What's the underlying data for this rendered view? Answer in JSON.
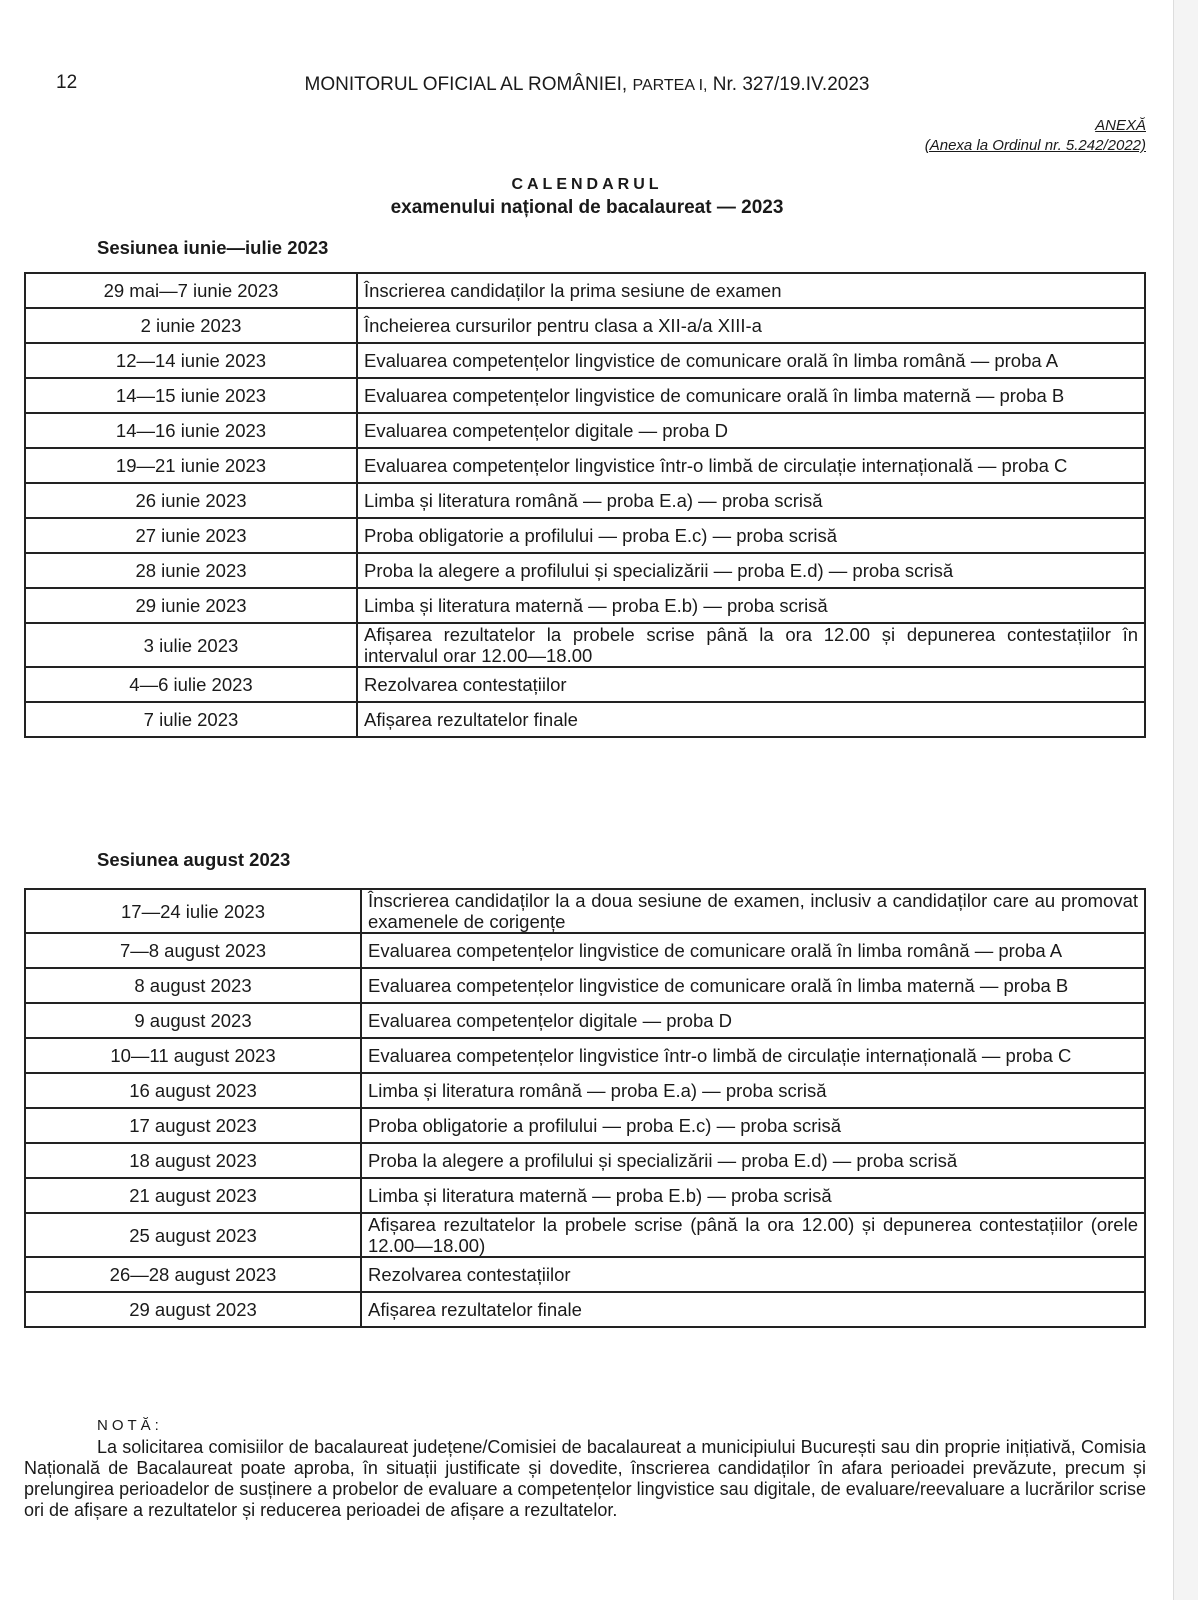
{
  "header": {
    "page_number": "12",
    "publication_main": "MONITORUL OFICIAL AL ROMÂNIEI,",
    "publication_part": "PARTEA I,",
    "publication_issue": "Nr. 327/19.IV.2023"
  },
  "annex": {
    "label": "ANEXĂ",
    "reference": "(Anexa la Ordinul nr. 5.242/2022)"
  },
  "title": {
    "line1": "CALENDARUL",
    "line2": "examenului național de bacalaureat — 2023"
  },
  "sessions": [
    {
      "heading": "Sesiunea iunie—iulie 2023",
      "rows": [
        {
          "date": "29 mai—7 iunie 2023",
          "event": "Înscrierea candidaților la prima sesiune de examen"
        },
        {
          "date": "2 iunie 2023",
          "event": "Încheierea cursurilor pentru clasa a XII-a/a XIII-a"
        },
        {
          "date": "12—14 iunie 2023",
          "event": "Evaluarea competențelor lingvistice de comunicare orală în limba română — proba A"
        },
        {
          "date": "14—15 iunie 2023",
          "event": "Evaluarea competențelor lingvistice de comunicare orală în limba maternă — proba B"
        },
        {
          "date": "14—16 iunie 2023",
          "event": "Evaluarea competențelor digitale — proba D"
        },
        {
          "date": "19—21 iunie 2023",
          "event": "Evaluarea competențelor lingvistice într-o limbă de circulație internațională — proba C"
        },
        {
          "date": "26 iunie 2023",
          "event": "Limba și literatura română — proba E.a) — proba scrisă"
        },
        {
          "date": "27 iunie 2023",
          "event": "Proba obligatorie a profilului — proba E.c) — proba scrisă"
        },
        {
          "date": "28 iunie 2023",
          "event": "Proba la alegere a profilului și specializării — proba E.d) — proba scrisă"
        },
        {
          "date": "29 iunie 2023",
          "event": "Limba și literatura maternă — proba E.b) — proba scrisă"
        },
        {
          "date": "3 iulie 2023",
          "event": "Afișarea rezultatelor la probele scrise până la ora 12.00 și depunerea contestațiilor în intervalul orar 12.00—18.00"
        },
        {
          "date": "4—6 iulie 2023",
          "event": "Rezolvarea contestațiilor"
        },
        {
          "date": "7 iulie 2023",
          "event": "Afișarea rezultatelor finale"
        }
      ]
    },
    {
      "heading": "Sesiunea august 2023",
      "rows": [
        {
          "date": "17—24 iulie 2023",
          "event": "Înscrierea candidaților la a doua sesiune de examen, inclusiv a candidaților care au promovat examenele de corigențe"
        },
        {
          "date": "7—8 august 2023",
          "event": "Evaluarea competențelor lingvistice de comunicare orală în limba română — proba A"
        },
        {
          "date": "8 august 2023",
          "event": "Evaluarea competențelor lingvistice de comunicare orală în limba maternă — proba B"
        },
        {
          "date": "9 august 2023",
          "event": "Evaluarea competențelor digitale — proba D"
        },
        {
          "date": "10—11 august 2023",
          "event": "Evaluarea competențelor lingvistice într-o limbă de circulație internațională — proba C"
        },
        {
          "date": "16 august 2023",
          "event": "Limba și literatura română — proba E.a) — proba scrisă"
        },
        {
          "date": "17 august 2023",
          "event": "Proba obligatorie a profilului — proba E.c) — proba scrisă"
        },
        {
          "date": "18 august 2023",
          "event": "Proba la alegere a profilului și specializării — proba E.d) — proba scrisă"
        },
        {
          "date": "21 august 2023",
          "event": "Limba și literatura maternă — proba E.b) — proba scrisă"
        },
        {
          "date": "25 august 2023",
          "event": "Afișarea rezultatelor la probele scrise (până la ora 12.00) și depunerea contestațiilor (orele 12.00—18.00)"
        },
        {
          "date": "26—28 august 2023",
          "event": "Rezolvarea contestațiilor"
        },
        {
          "date": "29 august 2023",
          "event": "Afișarea rezultatelor finale"
        }
      ]
    }
  ],
  "note": {
    "heading": "NOTĂ:",
    "text": "La solicitarea comisiilor de bacalaureat județene/Comisiei de bacalaureat a municipiului București sau din proprie inițiativă, Comisia Națională de Bacalaureat poate aproba, în situații justificate și dovedite, înscrierea candidaților în afara perioadei prevăzute, precum și prelungirea perioadelor de susținere a probelor de evaluare a competențelor lingvistice sau digitale, de evaluare/reevaluare a lucrărilor scrise ori de afișare a rezultatelor și reducerea perioadei de afișare a rezultatelor."
  }
}
